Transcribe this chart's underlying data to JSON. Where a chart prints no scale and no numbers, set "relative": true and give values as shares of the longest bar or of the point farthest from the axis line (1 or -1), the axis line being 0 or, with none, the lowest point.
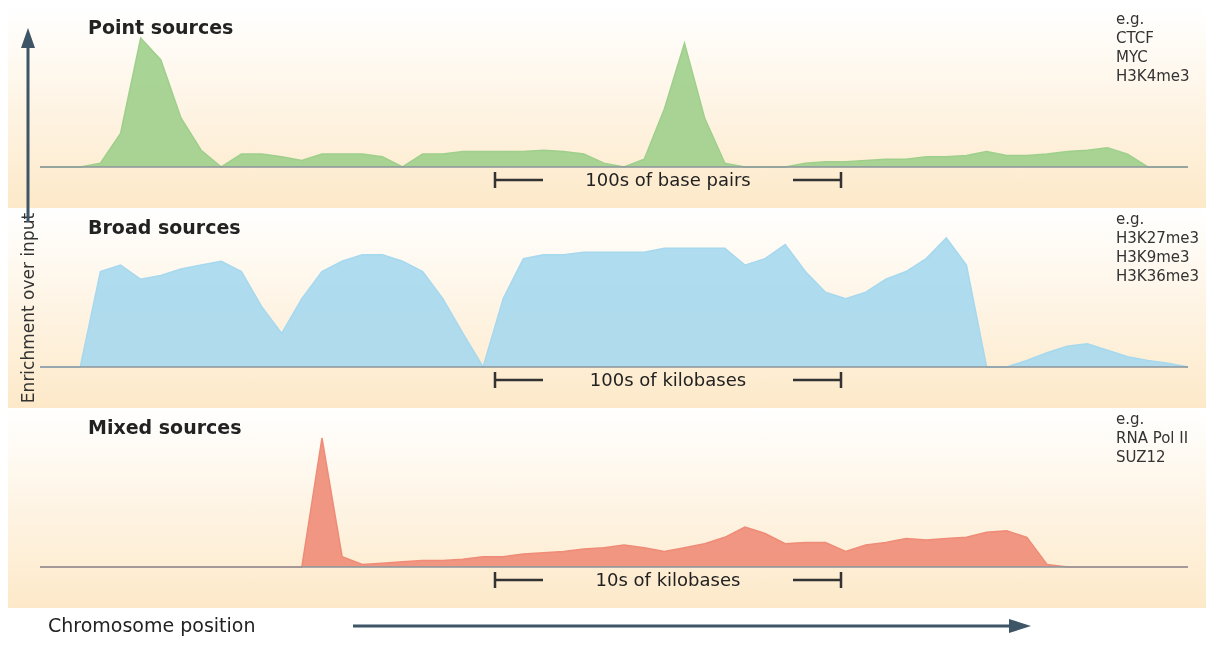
{
  "chart_data": [
    {
      "type": "area",
      "title": "Point sources",
      "annotations": [
        "e.g.\nCTCF\nMYC\nH3K4me3",
        "100s of base pairs"
      ],
      "relative": true,
      "color": "#9fcf8c",
      "categories": [
        null,
        null,
        null,
        null,
        null,
        null,
        null,
        null,
        null,
        null,
        null,
        null,
        null,
        null,
        null,
        null,
        null,
        null,
        null,
        null,
        null,
        null,
        null,
        null,
        null,
        null,
        null,
        null,
        null,
        null,
        null,
        null,
        null,
        null,
        null,
        null,
        null,
        null,
        null,
        null,
        null,
        null,
        null,
        null,
        null,
        null,
        null,
        null,
        null,
        null,
        null,
        null,
        null,
        null,
        null,
        null,
        null,
        null
      ],
      "values": [
        0,
        0,
        0,
        0.03,
        0.26,
        1,
        0.83,
        0.38,
        0.13,
        0,
        0.1,
        0.1,
        0.08,
        0.05,
        0.1,
        0.1,
        0.1,
        0.08,
        0,
        0.1,
        0.1,
        0.12,
        0.12,
        0.12,
        0.12,
        0.13,
        0.12,
        0.1,
        0.03,
        0,
        0.06,
        0.45,
        0.96,
        0.38,
        0.03,
        0,
        0,
        0,
        0.03,
        0.04,
        0.04,
        0.05,
        0.06,
        0.06,
        0.08,
        0.08,
        0.09,
        0.12,
        0.09,
        0.09,
        0.1,
        0.12,
        0.13,
        0.15,
        0.1,
        0,
        0,
        0
      ]
    },
    {
      "type": "area",
      "title": "Broad sources",
      "ylabel": "Enrichment over input",
      "annotations": [
        "e.g.\nH3K27me3\nH3K9me3\nH3K36me3",
        "100s of kilobases"
      ],
      "relative": true,
      "color": "#a6d8ee",
      "categories": [
        null,
        null,
        null,
        null,
        null,
        null,
        null,
        null,
        null,
        null,
        null,
        null,
        null,
        null,
        null,
        null,
        null,
        null,
        null,
        null,
        null,
        null,
        null,
        null,
        null,
        null,
        null,
        null,
        null,
        null,
        null,
        null,
        null,
        null,
        null,
        null,
        null,
        null,
        null,
        null,
        null,
        null,
        null,
        null,
        null,
        null,
        null,
        null,
        null,
        null,
        null,
        null,
        null,
        null,
        null,
        null,
        null,
        null
      ],
      "values": [
        0,
        0,
        0,
        0.74,
        0.79,
        0.68,
        0.71,
        0.76,
        0.79,
        0.82,
        0.74,
        0.47,
        0.26,
        0.53,
        0.74,
        0.82,
        0.87,
        0.87,
        0.82,
        0.74,
        0.53,
        0.26,
        0,
        0.53,
        0.84,
        0.87,
        0.87,
        0.89,
        0.89,
        0.89,
        0.89,
        0.92,
        0.92,
        0.92,
        0.92,
        0.79,
        0.84,
        0.95,
        0.74,
        0.58,
        0.53,
        0.58,
        0.68,
        0.74,
        0.84,
        1,
        0.79,
        0,
        0,
        0.05,
        0.11,
        0.16,
        0.18,
        0.13,
        0.08,
        0.05,
        0.03,
        0
      ]
    },
    {
      "type": "area",
      "title": "Mixed sources",
      "xlabel": "Chromosome position",
      "annotations": [
        "e.g.\nRNA Pol II\nSUZ12",
        "10s of kilobases"
      ],
      "relative": true,
      "color": "#ee8c78",
      "categories": [
        null,
        null,
        null,
        null,
        null,
        null,
        null,
        null,
        null,
        null,
        null,
        null,
        null,
        null,
        null,
        null,
        null,
        null,
        null,
        null,
        null,
        null,
        null,
        null,
        null,
        null,
        null,
        null,
        null,
        null,
        null,
        null,
        null,
        null,
        null,
        null,
        null,
        null,
        null,
        null,
        null,
        null,
        null,
        null,
        null,
        null,
        null,
        null,
        null,
        null,
        null,
        null,
        null,
        null,
        null,
        null,
        null,
        null
      ],
      "values": [
        0,
        0,
        0,
        0,
        0,
        0,
        0,
        0,
        0,
        0,
        0,
        0,
        0,
        0,
        1,
        0.08,
        0.02,
        0.03,
        0.04,
        0.05,
        0.05,
        0.06,
        0.08,
        0.08,
        0.1,
        0.11,
        0.12,
        0.14,
        0.15,
        0.17,
        0.15,
        0.12,
        0.15,
        0.18,
        0.23,
        0.31,
        0.26,
        0.18,
        0.19,
        0.19,
        0.12,
        0.17,
        0.19,
        0.22,
        0.21,
        0.22,
        0.23,
        0.27,
        0.28,
        0.23,
        0.02,
        0,
        0,
        0,
        0,
        0,
        0,
        0
      ]
    }
  ]
}
